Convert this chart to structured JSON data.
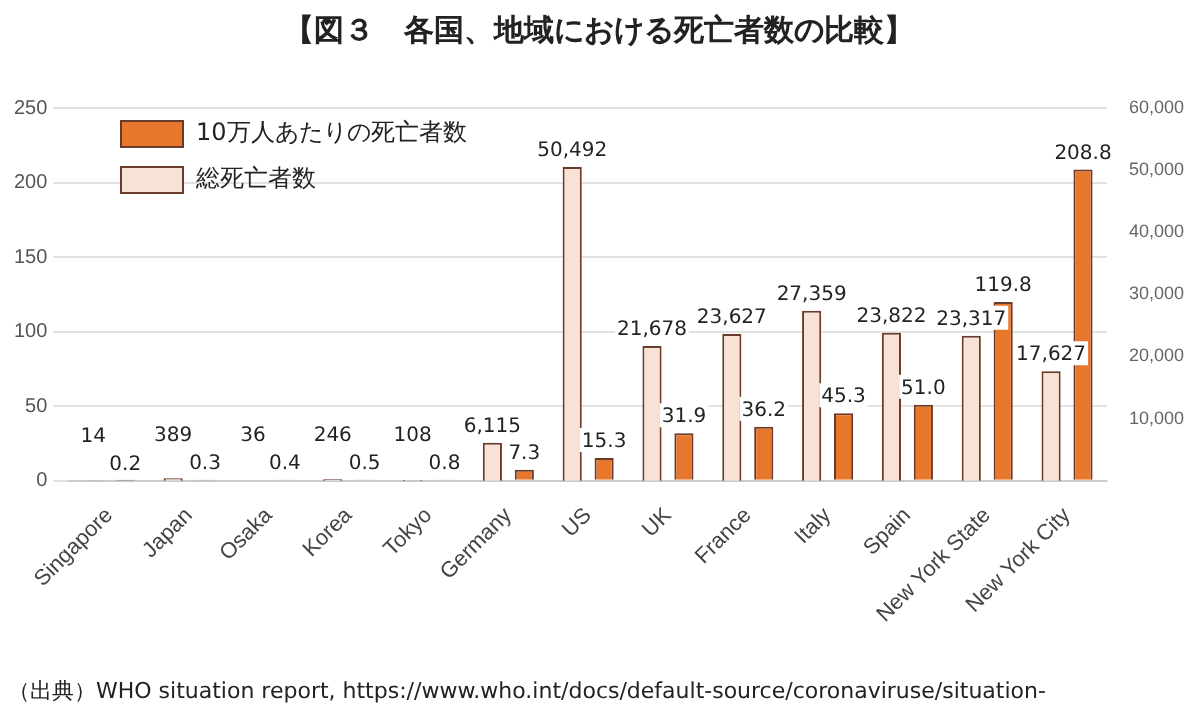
{
  "chart_data": {
    "type": "bar",
    "title": "【図３　各国、地域における死亡者数の比較】",
    "categories": [
      "Singapore",
      "Japan",
      "Osaka",
      "Korea",
      "Tokyo",
      "Germany",
      "US",
      "UK",
      "France",
      "Italy",
      "Spain",
      "New York State",
      "New York City"
    ],
    "series": [
      {
        "name": "総死亡者数",
        "color": "#f8e2d5",
        "axis": "y2",
        "values": [
          14,
          389,
          36,
          246,
          108,
          6115,
          50492,
          21678,
          23627,
          27359,
          23822,
          23317,
          17627
        ],
        "value_labels": [
          "14",
          "389",
          "36",
          "246",
          "108",
          "6,115",
          "50,492",
          "21,678",
          "23,627",
          "27,359",
          "23,822",
          "23,317",
          "17,627"
        ]
      },
      {
        "name": "10万人あたりの死亡者数",
        "color": "#e8772e",
        "axis": "y",
        "values": [
          0.2,
          0.3,
          0.4,
          0.5,
          0.8,
          7.3,
          15.3,
          31.9,
          36.2,
          45.3,
          51.0,
          119.8,
          208.8
        ],
        "value_labels": [
          "0.2",
          "0.3",
          "0.4",
          "0.5",
          "0.8",
          "7.3",
          "15.3",
          "31.9",
          "36.2",
          "45.3",
          "51.0",
          "119.8",
          "208.8"
        ]
      }
    ],
    "ylim": [
      0,
      250
    ],
    "yticks": [
      0,
      50,
      100,
      150,
      200,
      250
    ],
    "y2lim": [
      0,
      60000
    ],
    "y2ticks": [
      {
        "value": 10000,
        "label": "10,000"
      },
      {
        "value": 20000,
        "label": "20,000"
      },
      {
        "value": 30000,
        "label": "30,000"
      },
      {
        "value": 40000,
        "label": "40,000"
      },
      {
        "value": 50000,
        "label": "50,000"
      },
      {
        "value": 60000,
        "label": "60,000"
      }
    ],
    "grid": "y",
    "legend": "top left",
    "annotations": [
      "（出典）WHO situation report, https://www.who.int/docs/default-source/coronaviruse/situation-"
    ]
  }
}
